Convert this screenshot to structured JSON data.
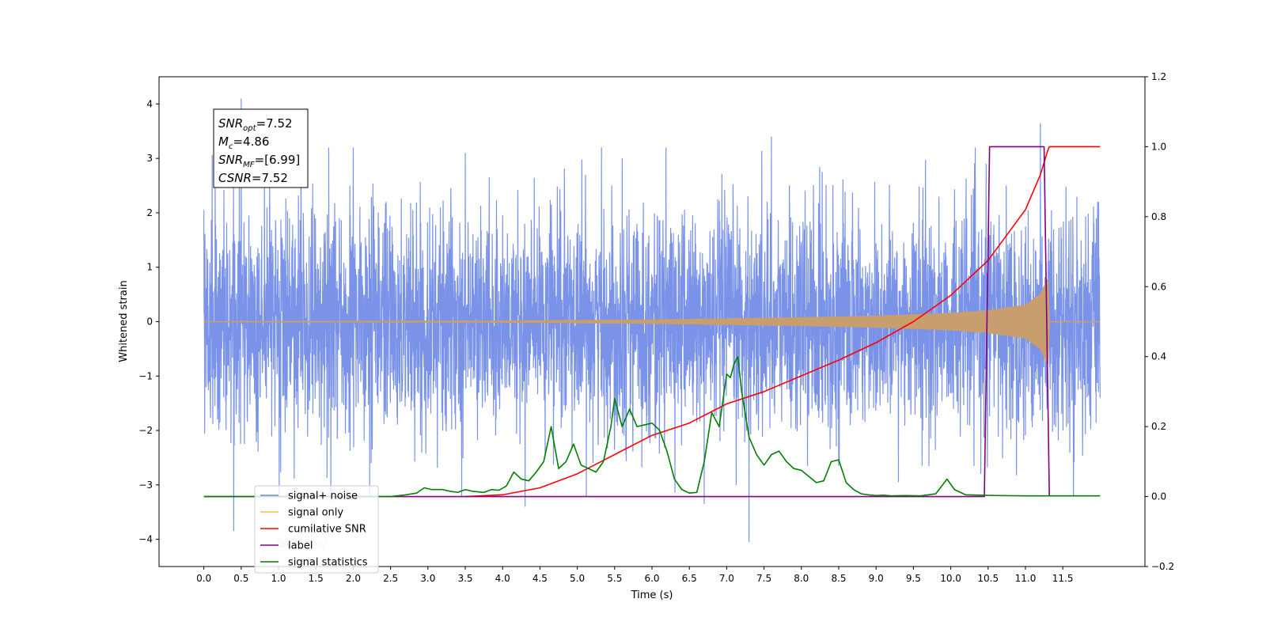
{
  "chart_data": {
    "type": "line",
    "xlabel": "Time (s)",
    "ylabel_left": "Whitened strain",
    "xlim": [
      -0.6,
      12.6
    ],
    "ylim_left": [
      -4.5,
      4.5
    ],
    "ylim_right": [
      -0.2,
      1.2
    ],
    "x_ticks": [
      0.0,
      0.5,
      1.0,
      1.5,
      2.0,
      2.5,
      3.0,
      3.5,
      4.0,
      4.5,
      5.0,
      5.5,
      6.0,
      6.5,
      7.0,
      7.5,
      8.0,
      8.5,
      9.0,
      9.5,
      10.0,
      10.5,
      11.0,
      11.5
    ],
    "x_tick_labels": [
      "0.0",
      "0.5",
      "1.0",
      "1.5",
      "2.0",
      "2.5",
      "3.0",
      "3.5",
      "4.0",
      "4.5",
      "5.0",
      "5.5",
      "6.0",
      "6.5",
      "7.0",
      "7.5",
      "8.0",
      "8.5",
      "9.0",
      "9.5",
      "10.0",
      "10.5",
      "11.0",
      "11.5"
    ],
    "y_left_ticks": [
      -4,
      -3,
      -2,
      -1,
      0,
      1,
      2,
      3,
      4
    ],
    "y_left_tick_labels": [
      "−4",
      "−3",
      "−2",
      "−1",
      "0",
      "1",
      "2",
      "3",
      "4"
    ],
    "y_right_ticks": [
      -0.2,
      0.0,
      0.2,
      0.4,
      0.6,
      0.8,
      1.0,
      1.2
    ],
    "y_right_tick_labels": [
      "−0.2",
      "0.0",
      "0.2",
      "0.4",
      "0.6",
      "0.8",
      "1.0",
      "1.2"
    ],
    "annotation": {
      "lines": [
        {
          "base": "SNR",
          "sub": "opt",
          "rest": "=7.52"
        },
        {
          "base": "M",
          "sub": "c",
          "rest": "=4.86"
        },
        {
          "base": "SNR",
          "sub": "MF",
          "rest": "=[6.99]"
        },
        {
          "base": "CSNR",
          "sub": "",
          "rest": "=7.52"
        }
      ]
    },
    "legend": {
      "placement": "lower-left",
      "entries": [
        {
          "label": "signal+ noise",
          "color": "#6b87e6"
        },
        {
          "label": "signal only",
          "color": "#ffbe55"
        },
        {
          "label": "cumilative SNR",
          "color": "#ff0000"
        },
        {
          "label": "label",
          "color": "#800080"
        },
        {
          "label": "signal statistics",
          "color": "#008000"
        }
      ],
      "hidden_text_behind": [
        "label only"
      ]
    },
    "series": [
      {
        "name": "signal+ noise",
        "axis": "left",
        "color": "#6b87e6",
        "x_range": [
          0.0,
          12.0
        ],
        "envelope_peaks_upper": [
          [
            0.0,
            2.05
          ],
          [
            0.5,
            4.1
          ],
          [
            1.3,
            3.5
          ],
          [
            2.0,
            3.2
          ],
          [
            3.5,
            3.1
          ],
          [
            5.6,
            3.0
          ],
          [
            7.6,
            3.4
          ],
          [
            9.3,
            3.1
          ],
          [
            11.2,
            3.65
          ],
          [
            12.0,
            2.1
          ]
        ],
        "envelope_peaks_lower": [
          [
            0.4,
            -3.85
          ],
          [
            1.7,
            -3.3
          ],
          [
            4.3,
            -3.4
          ],
          [
            6.7,
            -3.35
          ],
          [
            7.3,
            -4.05
          ],
          [
            9.3,
            -2.95
          ],
          [
            12.0,
            -1.4
          ]
        ]
      },
      {
        "name": "signal only",
        "axis": "left",
        "color": "#c89e6e",
        "x": [
          0.0,
          4.0,
          6.0,
          8.0,
          9.0,
          10.0,
          10.5,
          11.0,
          11.2,
          11.3,
          11.32,
          12.0
        ],
        "amplitude": [
          0.0,
          0.01,
          0.03,
          0.07,
          0.1,
          0.15,
          0.2,
          0.3,
          0.5,
          0.78,
          0.0,
          0.0
        ]
      },
      {
        "name": "cumilative SNR",
        "axis": "right",
        "color": "#ff0000",
        "x": [
          3.5,
          4.0,
          4.5,
          5.0,
          5.5,
          6.0,
          6.5,
          7.0,
          7.5,
          8.0,
          8.5,
          9.0,
          9.5,
          10.0,
          10.5,
          11.0,
          11.2,
          11.3,
          11.32,
          12.0
        ],
        "y": [
          0.0,
          0.005,
          0.025,
          0.065,
          0.12,
          0.175,
          0.21,
          0.265,
          0.3,
          0.345,
          0.39,
          0.44,
          0.5,
          0.575,
          0.675,
          0.82,
          0.92,
          0.99,
          1.0,
          1.0
        ]
      },
      {
        "name": "label",
        "axis": "right",
        "color": "#800080",
        "x": [
          0.0,
          10.45,
          10.52,
          11.25,
          11.32
        ],
        "y": [
          0.0,
          0.0,
          1.0,
          1.0,
          0.0
        ]
      },
      {
        "name": "signal statistics",
        "axis": "right",
        "color": "#008000",
        "x": [
          0.0,
          2.5,
          2.7,
          2.85,
          2.95,
          3.05,
          3.2,
          3.3,
          3.4,
          3.5,
          3.6,
          3.75,
          3.85,
          3.95,
          4.05,
          4.15,
          4.25,
          4.35,
          4.45,
          4.55,
          4.65,
          4.75,
          4.85,
          4.95,
          5.05,
          5.15,
          5.25,
          5.35,
          5.45,
          5.5,
          5.6,
          5.7,
          5.8,
          5.9,
          6.0,
          6.1,
          6.2,
          6.3,
          6.4,
          6.5,
          6.6,
          6.7,
          6.8,
          6.9,
          7.0,
          7.05,
          7.1,
          7.15,
          7.2,
          7.3,
          7.4,
          7.5,
          7.6,
          7.7,
          7.8,
          7.9,
          8.0,
          8.2,
          8.3,
          8.4,
          8.5,
          8.6,
          8.7,
          8.8,
          8.9,
          9.0,
          9.1,
          9.2,
          9.4,
          9.6,
          9.8,
          9.95,
          10.05,
          10.2,
          10.4,
          10.6,
          11.0,
          12.0
        ],
        "y": [
          0.0,
          0.0,
          0.005,
          0.01,
          0.025,
          0.02,
          0.02,
          0.015,
          0.012,
          0.02,
          0.015,
          0.012,
          0.02,
          0.018,
          0.03,
          0.07,
          0.05,
          0.045,
          0.07,
          0.1,
          0.2,
          0.08,
          0.1,
          0.15,
          0.09,
          0.08,
          0.07,
          0.1,
          0.2,
          0.28,
          0.2,
          0.25,
          0.2,
          0.205,
          0.21,
          0.19,
          0.13,
          0.05,
          0.02,
          0.01,
          0.012,
          0.1,
          0.24,
          0.2,
          0.35,
          0.34,
          0.38,
          0.4,
          0.3,
          0.17,
          0.12,
          0.09,
          0.12,
          0.13,
          0.1,
          0.08,
          0.075,
          0.04,
          0.045,
          0.1,
          0.105,
          0.04,
          0.02,
          0.008,
          0.005,
          0.003,
          0.004,
          0.002,
          0.003,
          0.002,
          0.008,
          0.05,
          0.02,
          0.005,
          0.004,
          0.003,
          0.002,
          0.002
        ]
      }
    ]
  }
}
